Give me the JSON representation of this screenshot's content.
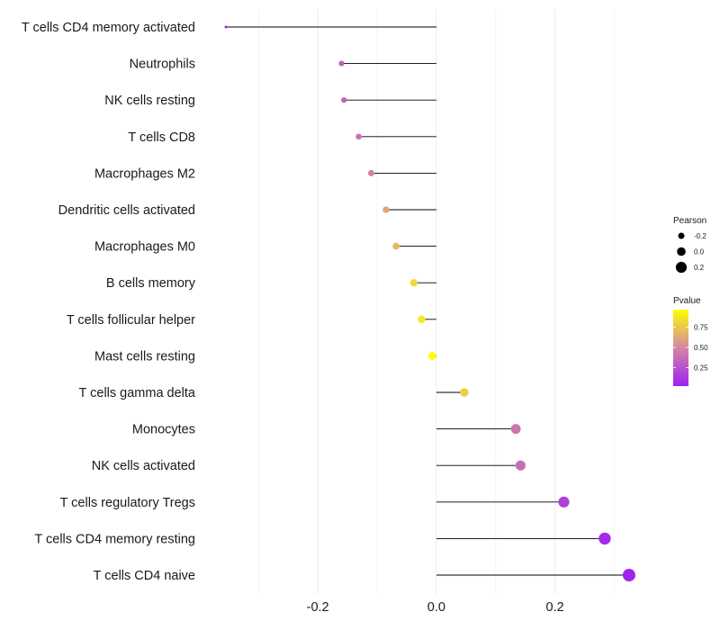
{
  "chart_data": {
    "type": "lollipop",
    "categories": [
      "T cells CD4 memory activated",
      "Neutrophils",
      "NK cells resting",
      "T cells CD8",
      "Macrophages M2",
      "Dendritic cells activated",
      "Macrophages M0",
      "B cells memory",
      "T cells follicular helper",
      "Mast cells resting",
      "T cells gamma delta",
      "Monocytes",
      "NK cells activated",
      "T cells regulatory  Tregs",
      "T cells CD4 memory resting",
      "T cells CD4 naive"
    ],
    "pearson": [
      -0.355,
      -0.16,
      -0.156,
      -0.131,
      -0.11,
      -0.085,
      -0.068,
      -0.038,
      -0.025,
      -0.007,
      0.047,
      0.134,
      0.142,
      0.215,
      0.284,
      0.325
    ],
    "pvalue": [
      0.02,
      0.32,
      0.33,
      0.4,
      0.48,
      0.62,
      0.69,
      0.82,
      0.88,
      0.97,
      0.78,
      0.42,
      0.38,
      0.17,
      0.06,
      0.03
    ],
    "xlim": [
      -0.39,
      0.36
    ],
    "xticks": [
      -0.2,
      0.0,
      0.2
    ],
    "xtick_labels": [
      "-0.2",
      "0.0",
      "0.2"
    ],
    "title": "",
    "xlabel": "",
    "ylabel": "",
    "legend_size": {
      "title": "Pearson",
      "values": [
        -0.2,
        0.0,
        0.2
      ],
      "labels": [
        "-0.2",
        "0.0",
        "0.2"
      ]
    },
    "legend_color": {
      "title": "Pvalue",
      "range": [
        0.02,
        0.97
      ],
      "ticks": [
        0.75,
        0.5,
        0.25
      ],
      "labels": [
        "0.75",
        "0.50",
        "0.25"
      ],
      "color_low": "#a020f0",
      "color_mid": "#d386a3",
      "color_high": "#ffff00"
    },
    "line_color": "#000000",
    "grid": true
  }
}
